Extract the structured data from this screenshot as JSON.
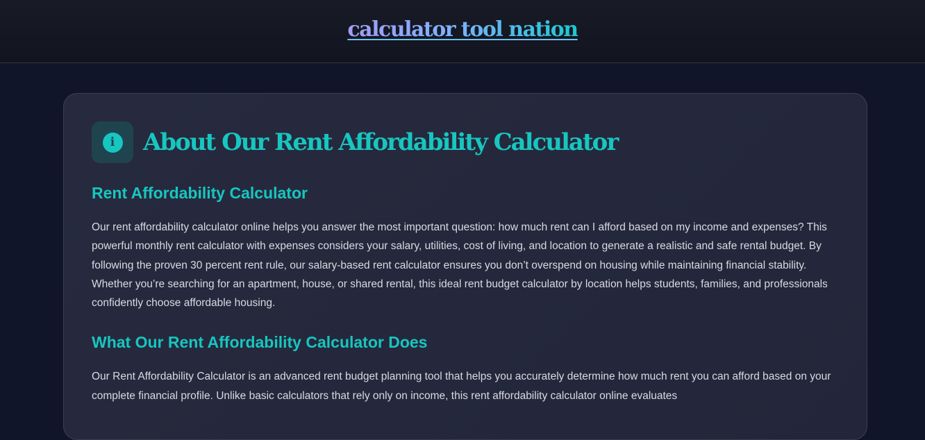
{
  "header": {
    "brand": "calculator tool nation"
  },
  "card": {
    "title": "About Our Rent Affordability Calculator",
    "icon": "info-icon",
    "sections": [
      {
        "heading": "Rent Affordability Calculator",
        "text": "Our rent affordability calculator online helps you answer the most important question: how much rent can I afford based on my income and expenses? This powerful monthly rent calculator with expenses considers your salary, utilities, cost of living, and location to generate a realistic and safe rental budget. By following the proven 30 percent rent rule, our salary-based rent calculator ensures you don’t overspend on housing while maintaining financial stability. Whether you’re searching for an apartment, house, or shared rental, this ideal rent budget calculator by location helps students, families, and professionals confidently choose affordable housing."
      },
      {
        "heading": "What Our Rent Affordability Calculator Does",
        "text": "Our Rent Affordability Calculator is an advanced rent budget planning tool that helps you accurately determine how much rent you can afford based on your complete financial profile. Unlike basic calculators that rely only on income, this rent affordability calculator online evaluates"
      }
    ]
  },
  "colors": {
    "accent": "#17c6c0",
    "background": "#11152a",
    "card": "#262a3d"
  }
}
